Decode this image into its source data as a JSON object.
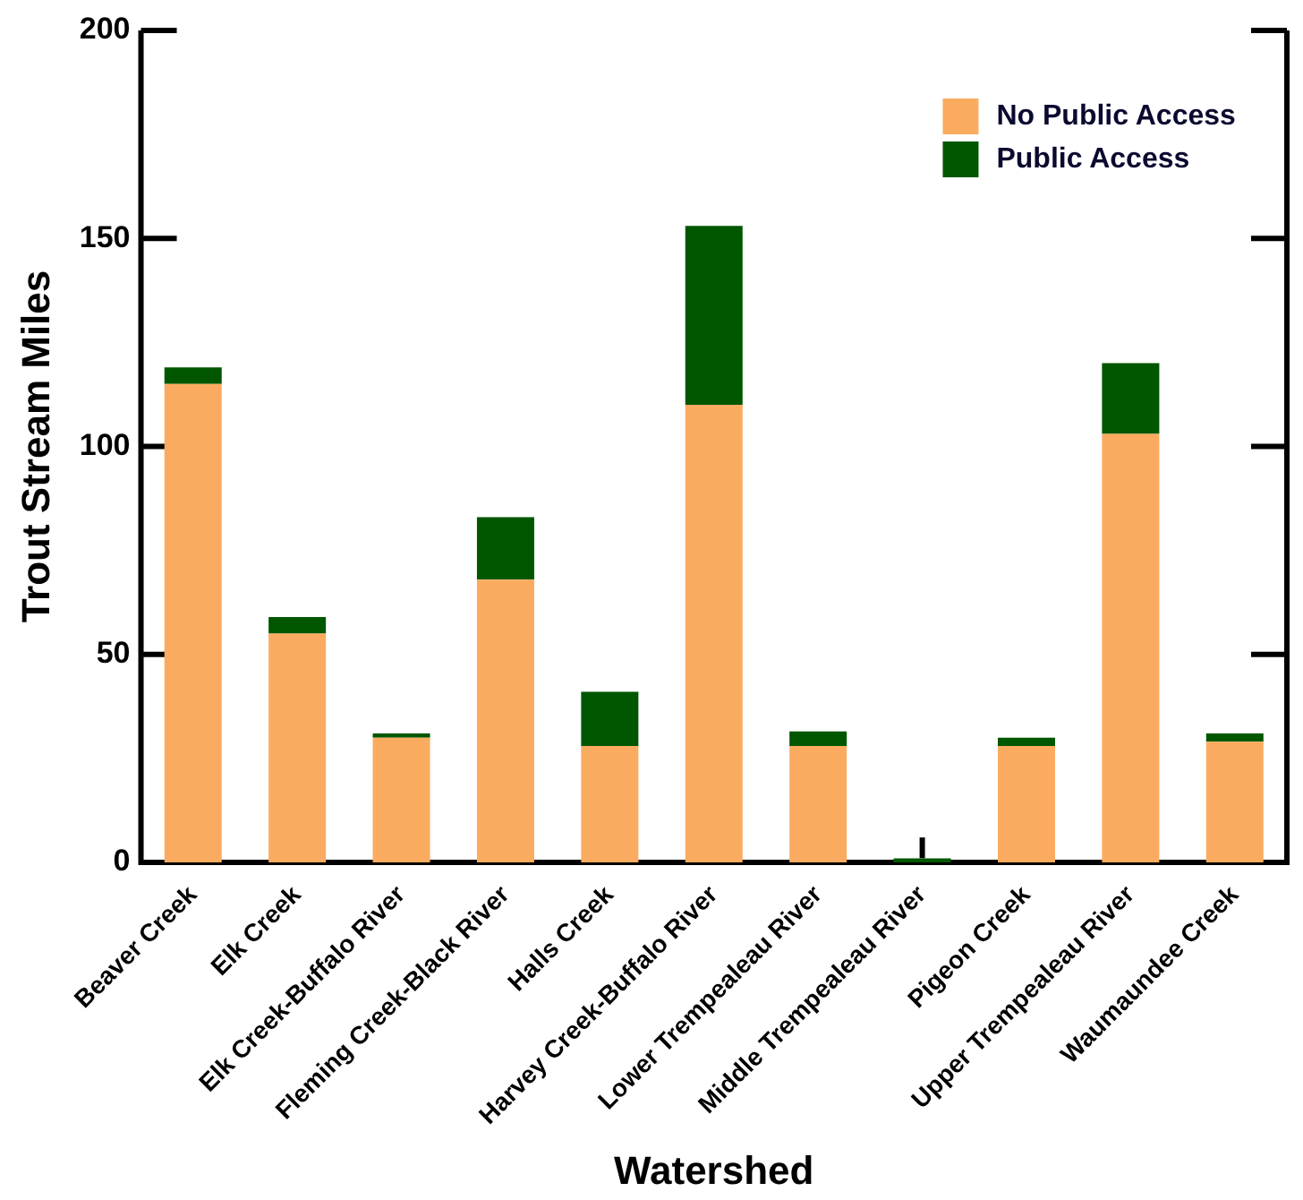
{
  "chart_data": {
    "type": "bar",
    "stacked": true,
    "xlabel": "Watershed",
    "ylabel": "Trout Stream Miles",
    "categories": [
      "Beaver Creek",
      "Elk Creek",
      "Elk Creek-Buffalo River",
      "Fleming Creek-Black River",
      "Halls Creek",
      "Harvey Creek-Buffalo River",
      "Lower Trempealeau River",
      "Middle Trempealeau River",
      "Pigeon Creek",
      "Upper Trempealeau River",
      "Waumaundee Creek"
    ],
    "series": [
      {
        "name": "No Public Access",
        "color": "#fbab60",
        "values": [
          115,
          55,
          30,
          68,
          28,
          110,
          28,
          0,
          28,
          103,
          29
        ]
      },
      {
        "name": "Public Access",
        "color": "#005700",
        "values": [
          4,
          4,
          1,
          15,
          13,
          43,
          3.5,
          1,
          2,
          17,
          2
        ],
        "errors": [
          null,
          null,
          null,
          null,
          null,
          null,
          null,
          [
            1,
            6
          ],
          null,
          null,
          null
        ]
      }
    ],
    "ylim": [
      0,
      200
    ],
    "yticks": [
      0,
      50,
      100,
      150,
      200
    ],
    "grid": false,
    "legend": "top right"
  }
}
